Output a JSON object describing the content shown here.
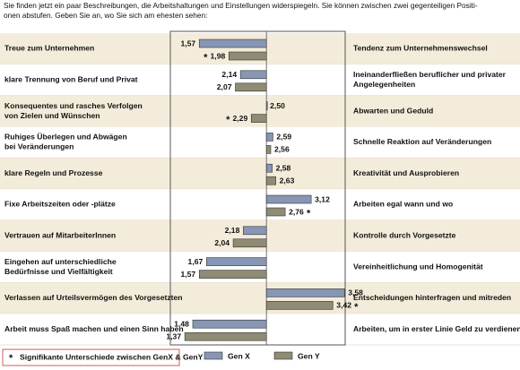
{
  "chart_data": {
    "type": "diverging-bar",
    "intro": [
      "Sie finden jetzt ein paar Beschreibungen, die Arbeitshaltungen und Einstellungen widerspiegeln. Sie können zwischen zwei gegenteiligen Positi-",
      "onen abstufen. Geben Sie an, wo Sie sich am ehesten sehen:"
    ],
    "left_labels": [
      [
        "Treue zum Unternehmen"
      ],
      [
        "klare Trennung von Beruf und Privat"
      ],
      [
        "Konsequentes und rasches Verfolgen",
        "von Zielen und Wünschen"
      ],
      [
        "Ruhiges Überlegen und Abwägen",
        "bei Veränderungen"
      ],
      [
        "klare Regeln und Prozesse"
      ],
      [
        "Fixe Arbeitszeiten oder -plätze"
      ],
      [
        "Vertrauen auf MitarbeiterInnen"
      ],
      [
        "Eingehen auf unterschiedliche",
        "Bedürfnisse und Vielfältigkeit"
      ],
      [
        "Verlassen auf Urteilsvermögen des Vorgesetzten"
      ],
      [
        "Arbeit muss Spaß machen und einen Sinn haben"
      ]
    ],
    "right_labels": [
      [
        "Tendenz zum Unternehmenswechsel"
      ],
      [
        "Ineinanderfließen beruflicher und privater",
        "Angelegenheiten"
      ],
      [
        "Abwarten und Geduld"
      ],
      [
        "Schnelle Reaktion auf Veränderungen"
      ],
      [
        "Kreativität und Ausprobieren"
      ],
      [
        "Arbeiten egal wann und wo"
      ],
      [
        "Kontrolle durch Vorgesetzte"
      ],
      [
        "Vereinheitlichung und Homogenität"
      ],
      [
        "Entscheidungen hinterfragen und mitreden"
      ],
      [
        "Arbeiten, um in erster Linie Geld zu verdienen"
      ]
    ],
    "xlim": [
      1.17,
      3.59
    ],
    "xorigin": 2.5,
    "series": [
      {
        "name": "Gen X",
        "color": "#8796b4",
        "values": [
          1.57,
          2.14,
          2.5,
          2.59,
          2.58,
          3.12,
          2.18,
          1.67,
          3.58,
          1.48
        ],
        "value_labels": [
          "1,57",
          "2,14",
          "2,50",
          "2,59",
          "2,58",
          "3,12",
          "2,18",
          "1,67",
          "3,58",
          "1,48"
        ]
      },
      {
        "name": "Gen Y",
        "color": "#8f8b74",
        "values": [
          1.98,
          2.07,
          2.29,
          2.56,
          2.63,
          2.76,
          2.04,
          1.57,
          3.42,
          1.37
        ],
        "value_labels": [
          "1,98",
          "2,07",
          "2,29",
          "2,56",
          "2,63",
          "2,76",
          "2,04",
          "1,57",
          "3,42",
          "1,37"
        ]
      }
    ],
    "significance_marker": "*",
    "significant": [
      true,
      false,
      true,
      false,
      false,
      true,
      false,
      false,
      true,
      false
    ],
    "significance_note": "Signifikante Unterschiede zwischen GenX & GenY"
  }
}
